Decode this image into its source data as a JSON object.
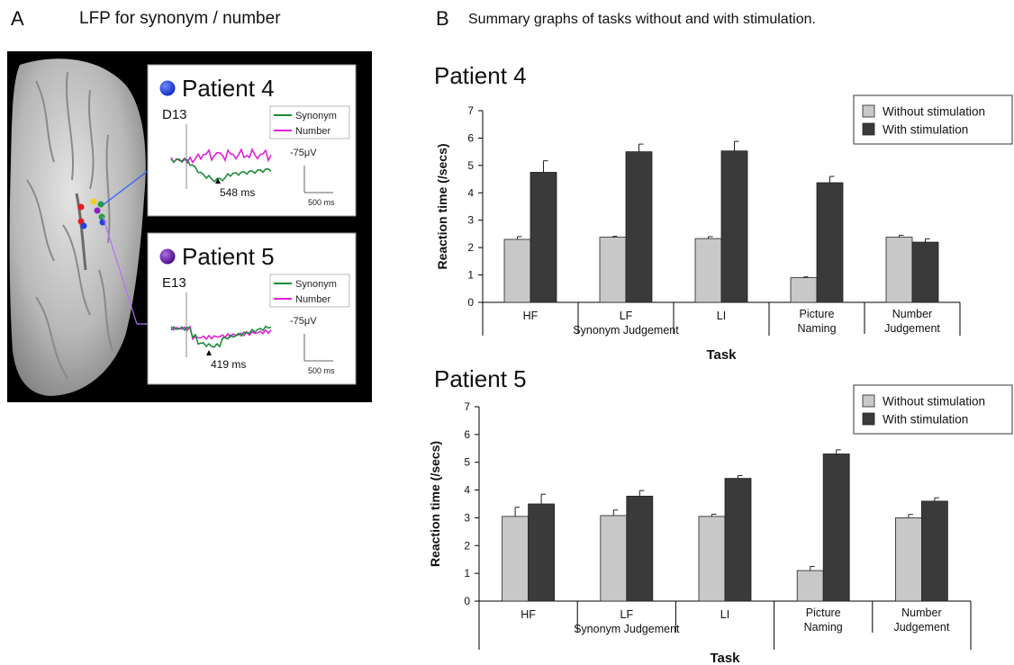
{
  "panel_a": {
    "letter": "A",
    "title": "LFP for synonym / number",
    "insets": [
      {
        "patient": "Patient 4",
        "electrode": "D13",
        "marker_color": "#1f3fe0",
        "legend": [
          "Synonym",
          "Number"
        ],
        "scale_v": "-75μV",
        "scale_t": "500 ms",
        "peak_label": "548 ms"
      },
      {
        "patient": "Patient 5",
        "electrode": "E13",
        "marker_color": "#6a1fa8",
        "legend": [
          "Synonym",
          "Number"
        ],
        "scale_v": "-75μV",
        "scale_t": "500 ms",
        "peak_label": "419 ms"
      }
    ],
    "colors": {
      "synonym": "#1e8c3a",
      "number": "#e020d8",
      "background": "#000000"
    },
    "electrode_colors": [
      "#e02020",
      "#f0d010",
      "#20a040",
      "#2040e0",
      "#9020c0"
    ]
  },
  "panel_b": {
    "letter": "B",
    "title": "Summary graphs of tasks without and with stimulation."
  },
  "chart_data": [
    {
      "type": "bar",
      "title": "Patient 4",
      "xlabel": "Task",
      "ylabel": "Reaction time (/secs)",
      "ylim": [
        0,
        7
      ],
      "yticks": [
        0,
        1,
        2,
        3,
        4,
        5,
        6,
        7
      ],
      "categories": [
        "HF",
        "LF",
        "LI",
        "Picture Naming",
        "Number Judgement"
      ],
      "group_label": "Synonym Judgement",
      "legend_placement": "top-right",
      "series": [
        {
          "name": "Without stimulation",
          "color": "#c8c8c8",
          "values": [
            2.3,
            2.38,
            2.33,
            0.9,
            2.38
          ],
          "errors": [
            0.1,
            0.03,
            0.07,
            0.03,
            0.07
          ]
        },
        {
          "name": "With stimulation",
          "color": "#3a3a3a",
          "values": [
            4.75,
            5.5,
            5.53,
            4.37,
            2.2
          ],
          "errors": [
            0.42,
            0.28,
            0.35,
            0.23,
            0.12
          ]
        }
      ]
    },
    {
      "type": "bar",
      "title": "Patient 5",
      "xlabel": "Task",
      "ylabel": "Reaction time (/secs)",
      "ylim": [
        0,
        7
      ],
      "yticks": [
        0,
        1,
        2,
        3,
        4,
        5,
        6,
        7
      ],
      "categories": [
        "HF",
        "LF",
        "LI",
        "Picture Naming",
        "Number Judgement"
      ],
      "group_label": "Synonym Judgement",
      "legend_placement": "top-right",
      "series": [
        {
          "name": "Without stimulation",
          "color": "#c8c8c8",
          "values": [
            3.05,
            3.08,
            3.05,
            1.1,
            3.0
          ],
          "errors": [
            0.33,
            0.2,
            0.08,
            0.15,
            0.12
          ]
        },
        {
          "name": "With stimulation",
          "color": "#3a3a3a",
          "values": [
            3.5,
            3.78,
            4.42,
            5.3,
            3.6
          ],
          "errors": [
            0.35,
            0.2,
            0.1,
            0.15,
            0.12
          ]
        }
      ]
    }
  ]
}
